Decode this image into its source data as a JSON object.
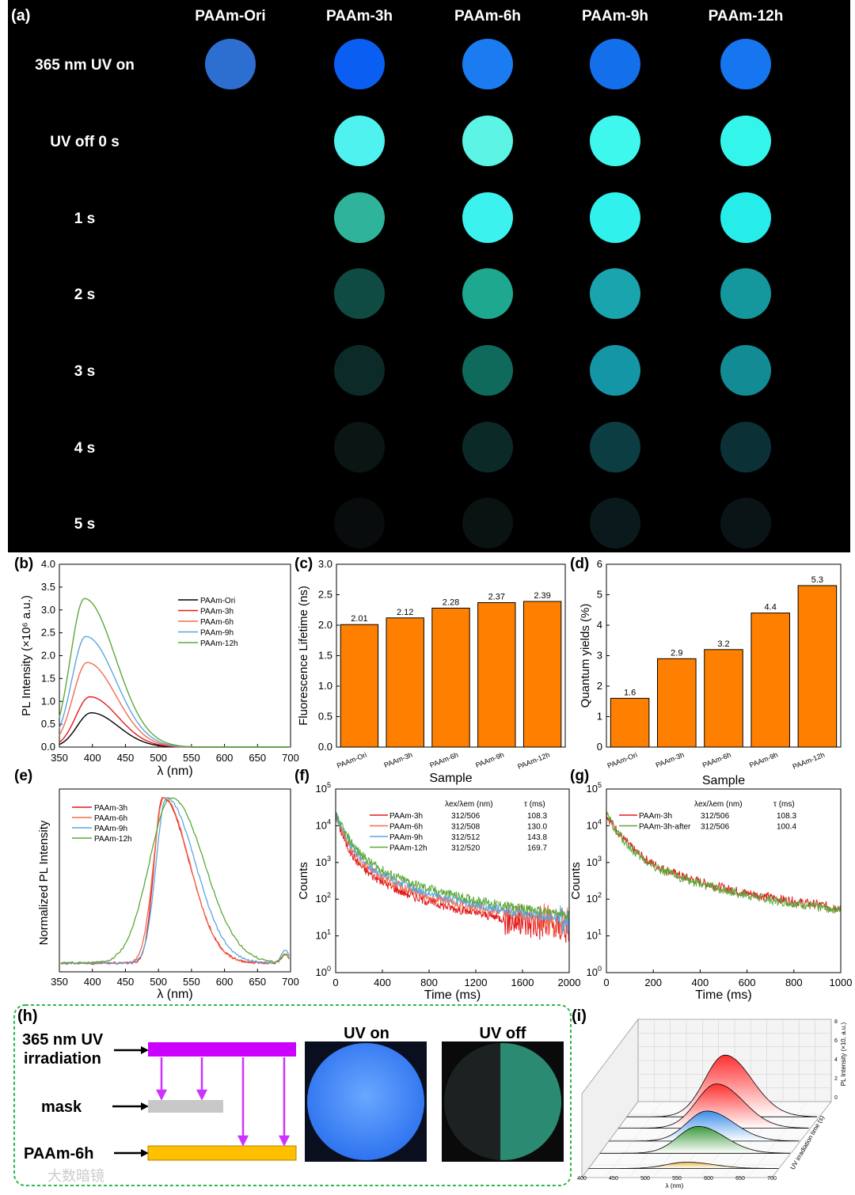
{
  "panel_a": {
    "label": "(a)",
    "columns": [
      "PAAm-Ori",
      "PAAm-3h",
      "PAAm-6h",
      "PAAm-9h",
      "PAAm-12h"
    ],
    "rows": [
      "365 nm UV on",
      "UV off 0 s",
      "1 s",
      "2 s",
      "3 s",
      "4 s",
      "5 s"
    ],
    "circle_colors": [
      [
        "#2d6fd0",
        "#0a5ff2",
        "#1a7cf0",
        "#1470ea",
        "#1576f0"
      ],
      [
        "#000000",
        "#4ff2ee",
        "#5cf4e4",
        "#3ef8ee",
        "#34f5ea"
      ],
      [
        "#000000",
        "#2fb39b",
        "#3cf2ee",
        "#31f1ec",
        "#27edea"
      ],
      [
        "#000000",
        "#0f4a43",
        "#1ea88f",
        "#1aa4ae",
        "#14989e"
      ],
      [
        "#000000",
        "#0b2a28",
        "#0f6a5c",
        "#1596a6",
        "#138b95"
      ],
      [
        "#000000",
        "#0a1514",
        "#0b2a27",
        "#0c3d42",
        "#0b3136"
      ],
      [
        "#000000",
        "#080c0c",
        "#0a1312",
        "#0a1a1c",
        "#0a1416"
      ]
    ]
  },
  "chart_data": [
    {
      "panel": "(b)",
      "type": "line",
      "xlabel": "λ (nm)",
      "ylabel": "PL Intensity (×10⁶ a.u.)",
      "xlim": [
        350,
        700
      ],
      "ylim": [
        0,
        4.0
      ],
      "xticks": [
        "350",
        "400",
        "450",
        "500",
        "550",
        "600",
        "650",
        "700"
      ],
      "yticks": [
        "0.0",
        "0.5",
        "1.0",
        "1.5",
        "2.0",
        "2.5",
        "3.0",
        "3.5",
        "4.0"
      ],
      "series": [
        {
          "name": "PAAm-Ori",
          "color": "#000000",
          "peak_x": 398,
          "peak_y": 0.75
        },
        {
          "name": "PAAm-3h",
          "color": "#e41a1c",
          "peak_x": 396,
          "peak_y": 1.1
        },
        {
          "name": "PAAm-6h",
          "color": "#f26d4f",
          "peak_x": 392,
          "peak_y": 1.85
        },
        {
          "name": "PAAm-9h",
          "color": "#5ba7e0",
          "peak_x": 390,
          "peak_y": 2.42
        },
        {
          "name": "PAAm-12h",
          "color": "#5ca83a",
          "peak_x": 388,
          "peak_y": 3.25
        }
      ],
      "legend": "center-right"
    },
    {
      "panel": "(c)",
      "type": "bar",
      "categories": [
        "PAAm-Ori",
        "PAAm-3h",
        "PAAm-6h",
        "PAAm-9h",
        "PAAm-12h"
      ],
      "values": [
        2.01,
        2.12,
        2.28,
        2.37,
        2.39
      ],
      "labels": [
        "2.01",
        "2.12",
        "2.28",
        "2.37",
        "2.39"
      ],
      "xlabel": "Sample",
      "ylabel": "Fluorescence Lifetime (ns)",
      "ylim": [
        0,
        3.0
      ],
      "yticks": [
        "0.0",
        "0.5",
        "1.0",
        "1.5",
        "2.0",
        "2.5",
        "3.0"
      ],
      "color": "#ff8000"
    },
    {
      "panel": "(d)",
      "type": "bar",
      "categories": [
        "PAAm-Ori",
        "PAAm-3h",
        "PAAm-6h",
        "PAAm-9h",
        "PAAm-12h"
      ],
      "values": [
        1.6,
        2.9,
        3.2,
        4.4,
        5.3
      ],
      "labels": [
        "1.6",
        "2.9",
        "3.2",
        "4.4",
        "5.3"
      ],
      "xlabel": "Sample",
      "ylabel": "Quantum yields (%)",
      "ylim": [
        0,
        6
      ],
      "yticks": [
        "0",
        "1",
        "2",
        "3",
        "4",
        "5",
        "6"
      ],
      "color": "#ff8000"
    },
    {
      "panel": "(e)",
      "type": "line",
      "xlabel": "λ (nm)",
      "ylabel": "Normalized PL Intensity",
      "xlim": [
        350,
        700
      ],
      "ylim": [
        0,
        1.05
      ],
      "xticks": [
        "350",
        "400",
        "450",
        "500",
        "550",
        "600",
        "650",
        "700"
      ],
      "series": [
        {
          "name": "PAAm-3h",
          "color": "#e41a1c",
          "peak_x": 506,
          "left_w": 18,
          "right_w": 58
        },
        {
          "name": "PAAm-6h",
          "color": "#f26d4f",
          "peak_x": 508,
          "left_w": 22,
          "right_w": 56
        },
        {
          "name": "PAAm-9h",
          "color": "#5ba7e0",
          "peak_x": 512,
          "left_w": 22,
          "right_w": 62
        },
        {
          "name": "PAAm-12h",
          "color": "#5ca83a",
          "peak_x": 520,
          "left_w": 48,
          "right_w": 70
        }
      ],
      "legend": "top-left"
    },
    {
      "panel": "(f)",
      "type": "line",
      "xlabel": "Time (ms)",
      "ylabel": "Counts",
      "xlim": [
        0,
        2000
      ],
      "yscale": "log",
      "ylim": [
        1,
        100000
      ],
      "xticks": [
        "0",
        "400",
        "800",
        "1200",
        "1600",
        "2000"
      ],
      "legend_header": {
        "lambda": "λex/λem (nm)",
        "tau": "τ (ms)"
      },
      "series": [
        {
          "name": "PAAm-3h",
          "color": "#e41a1c",
          "lambda": "312/506",
          "tau": "108.3",
          "tau_val": 108.3
        },
        {
          "name": "PAAm-6h",
          "color": "#f26d4f",
          "lambda": "312/508",
          "tau": "130.0",
          "tau_val": 130.0
        },
        {
          "name": "PAAm-9h",
          "color": "#5ba7e0",
          "lambda": "312/512",
          "tau": "143.8",
          "tau_val": 143.8
        },
        {
          "name": "PAAm-12h",
          "color": "#5ca83a",
          "lambda": "312/520",
          "tau": "169.7",
          "tau_val": 169.7
        }
      ]
    },
    {
      "panel": "(g)",
      "type": "line",
      "xlabel": "Time (ms)",
      "ylabel": "Counts",
      "xlim": [
        0,
        1000
      ],
      "yscale": "log",
      "ylim": [
        1,
        100000
      ],
      "xticks": [
        "0",
        "200",
        "400",
        "600",
        "800",
        "1000"
      ],
      "legend_header": {
        "lambda": "λex/λem (nm)",
        "tau": "τ (ms)"
      },
      "series": [
        {
          "name": "PAAm-3h",
          "color": "#e41a1c",
          "lambda": "312/506",
          "tau": "108.3",
          "tau_val": 108.3
        },
        {
          "name": "PAAm-3h-after",
          "color": "#5ca83a",
          "lambda": "312/506",
          "tau": "100.4",
          "tau_val": 100.4
        }
      ]
    }
  ],
  "panel_h": {
    "label": "(h)",
    "uv_label_line1": "365 nm UV",
    "uv_label_line2": "irradiation",
    "mask_label": "mask",
    "sample_label": "PAAm-6h",
    "uv_on_title": "UV on",
    "uv_off_title": "UV off",
    "uv_bar_color": "#cc00ff",
    "mask_color": "#c8c8c8",
    "sample_color": "#ffc000"
  },
  "panel_i": {
    "label": "(i)",
    "xlabel": "λ (nm)",
    "xticks": [
      "400",
      "450",
      "500",
      "550",
      "600",
      "650",
      "700"
    ],
    "zlabel": "PL Intensity (×10, a.u.)",
    "zticks": [
      "0",
      "2",
      "4",
      "6",
      "8"
    ],
    "ylabel": "UV irradiation time (s)"
  },
  "watermark": "大数暗镜"
}
